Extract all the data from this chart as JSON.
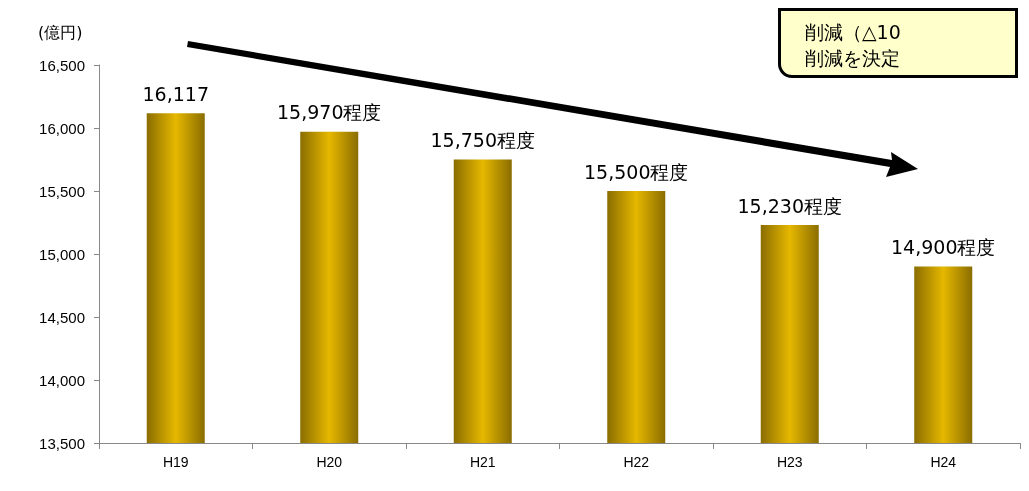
{
  "chart_data": {
    "type": "bar",
    "ylabel": "(億円)",
    "categories": [
      "H19",
      "H20",
      "H21",
      "H22",
      "H23",
      "H24"
    ],
    "values": [
      16117,
      15970,
      15750,
      15500,
      15230,
      14900
    ],
    "value_labels": [
      "16,117",
      "15,970程度",
      "15,750程度",
      "15,500程度",
      "15,230程度",
      "14,900程度"
    ],
    "color": "#e6b800",
    "ylim": [
      13500,
      16500
    ],
    "yticks": [
      {
        "value": 13500,
        "label": "13,500"
      },
      {
        "value": 14000,
        "label": "14,000"
      },
      {
        "value": 14500,
        "label": "14,500"
      },
      {
        "value": 15000,
        "label": "15,000"
      },
      {
        "value": 15500,
        "label": "15,500"
      },
      {
        "value": 16000,
        "label": "16,000"
      },
      {
        "value": 16500,
        "label": "16,500"
      }
    ],
    "grid": false,
    "annotations": [
      "削減（△10",
      "削減を決定"
    ]
  }
}
